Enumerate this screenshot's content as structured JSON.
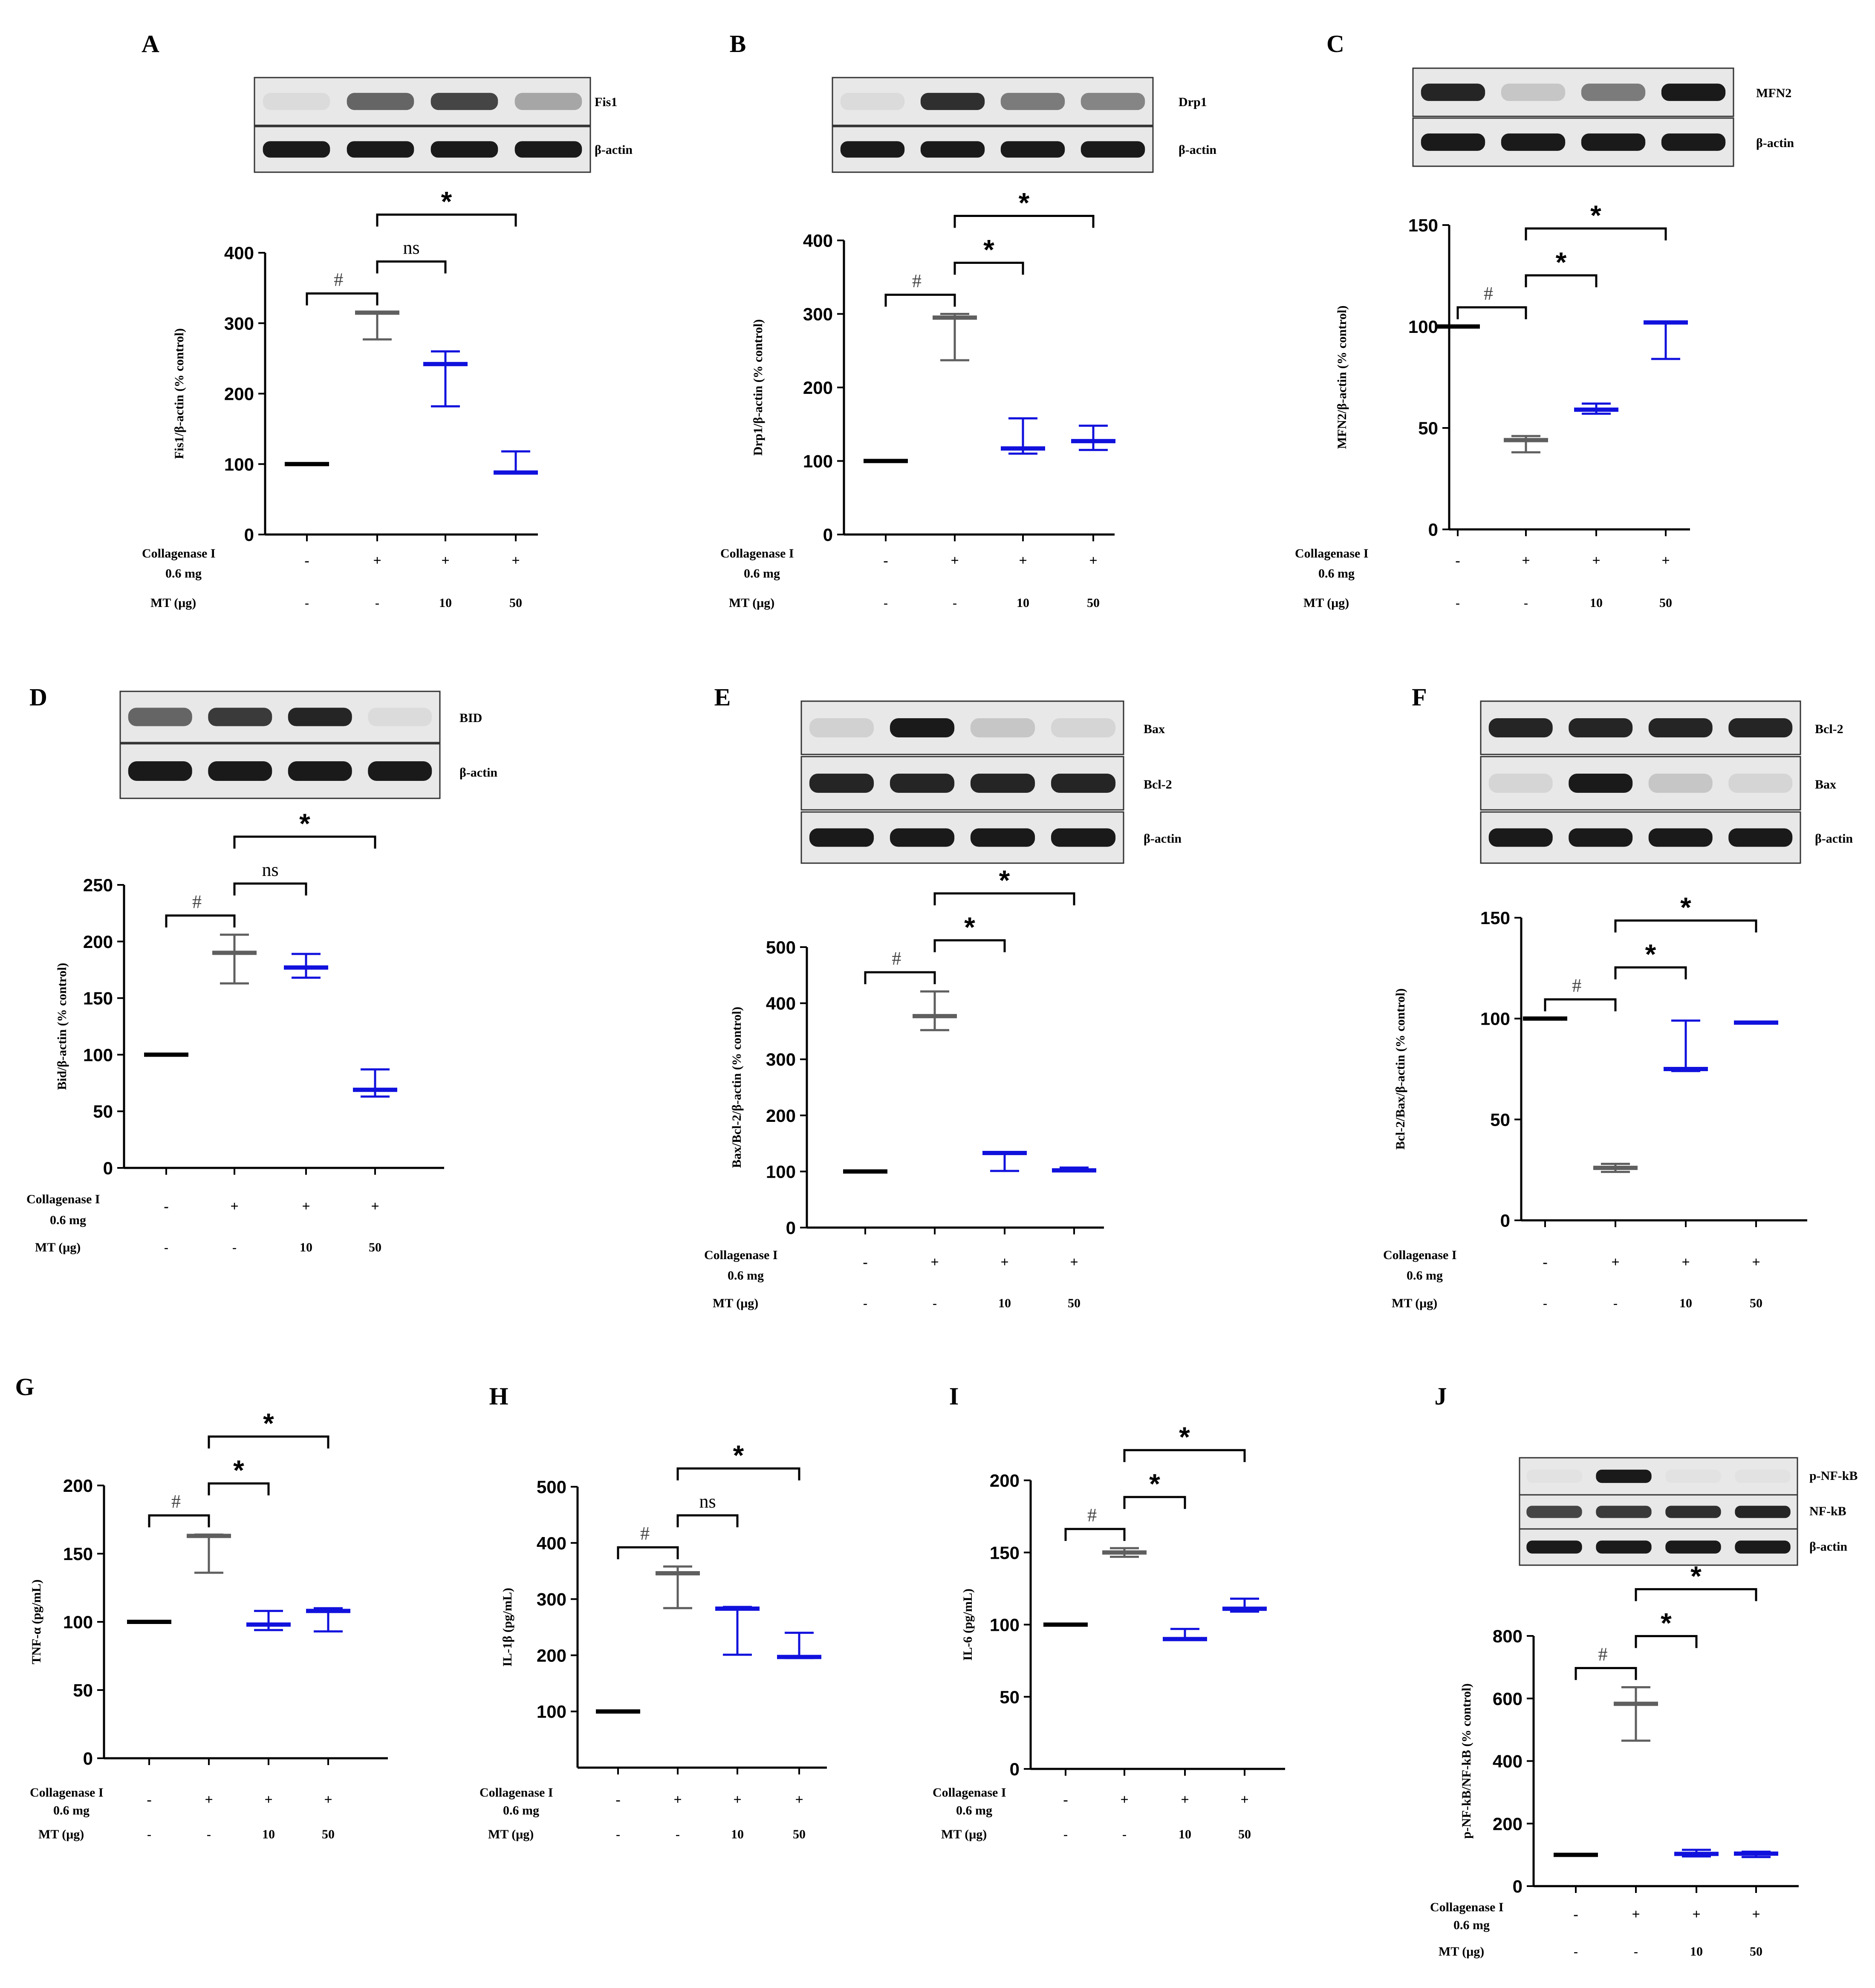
{
  "colors": {
    "control": "#000000",
    "model": "#5f5f5f",
    "treated": "#1111dd",
    "axis": "#000000"
  },
  "rows": {
    "collagenase_label": "Collagenase I",
    "collagenase_dose": "0.6 mg",
    "mt_label": "MT (μg)",
    "collagenase_vals": [
      "-",
      "+",
      "+",
      "+"
    ],
    "mt_vals": [
      "-",
      "-",
      "10",
      "50"
    ]
  },
  "chart_data": [
    {
      "panel": "A",
      "type": "bar",
      "ylabel": "Fis1/β-actin (% control)",
      "ylim": [
        0,
        400
      ],
      "ticks": [
        0,
        100,
        200,
        300,
        400
      ],
      "blot": {
        "bands": [
          "Fis1",
          "β-actin"
        ]
      },
      "groups": [
        {
          "mean": 100,
          "lo": 100,
          "hi": 100,
          "color": "control"
        },
        {
          "mean": 315,
          "lo": 277,
          "hi": 315,
          "color": "model"
        },
        {
          "mean": 242,
          "lo": 182,
          "hi": 260,
          "color": "treated"
        },
        {
          "mean": 88,
          "lo": 88,
          "hi": 118,
          "color": "treated"
        }
      ],
      "comparisons": [
        {
          "from": 0,
          "to": 1,
          "label": "#"
        },
        {
          "from": 1,
          "to": 2,
          "label": "ns"
        },
        {
          "from": 1,
          "to": 3,
          "label": "*"
        }
      ]
    },
    {
      "panel": "B",
      "type": "bar",
      "ylabel": "Drp1/β-actin (% control)",
      "ylim": [
        0,
        400
      ],
      "ticks": [
        0,
        100,
        200,
        300,
        400
      ],
      "blot": {
        "bands": [
          "Drp1",
          "β-actin"
        ]
      },
      "groups": [
        {
          "mean": 100,
          "lo": 100,
          "hi": 100,
          "color": "control"
        },
        {
          "mean": 295,
          "lo": 237,
          "hi": 300,
          "color": "model"
        },
        {
          "mean": 117,
          "lo": 110,
          "hi": 158,
          "color": "treated"
        },
        {
          "mean": 127,
          "lo": 115,
          "hi": 148,
          "color": "treated"
        }
      ],
      "comparisons": [
        {
          "from": 0,
          "to": 1,
          "label": "#"
        },
        {
          "from": 1,
          "to": 2,
          "label": "*"
        },
        {
          "from": 1,
          "to": 3,
          "label": "*"
        }
      ]
    },
    {
      "panel": "C",
      "type": "bar",
      "ylabel": "MFN2/β-actin (% control)",
      "ylim": [
        0,
        150
      ],
      "ticks": [
        0,
        50,
        100,
        150
      ],
      "blot": {
        "bands": [
          "MFN2",
          "β-actin"
        ]
      },
      "groups": [
        {
          "mean": 100,
          "lo": 100,
          "hi": 100,
          "color": "control"
        },
        {
          "mean": 44,
          "lo": 38,
          "hi": 46,
          "color": "model"
        },
        {
          "mean": 59,
          "lo": 57,
          "hi": 62,
          "color": "treated"
        },
        {
          "mean": 102,
          "lo": 84,
          "hi": 102,
          "color": "treated"
        }
      ],
      "comparisons": [
        {
          "from": 0,
          "to": 1,
          "label": "#"
        },
        {
          "from": 1,
          "to": 2,
          "label": "*"
        },
        {
          "from": 1,
          "to": 3,
          "label": "*"
        }
      ]
    },
    {
      "panel": "D",
      "type": "bar",
      "ylabel": "Bid/β-actin (% control)",
      "ylim": [
        0,
        250
      ],
      "ticks": [
        0,
        50,
        100,
        150,
        200,
        250
      ],
      "blot": {
        "bands": [
          "BID",
          "β-actin"
        ]
      },
      "groups": [
        {
          "mean": 100,
          "lo": 100,
          "hi": 100,
          "color": "control"
        },
        {
          "mean": 190,
          "lo": 163,
          "hi": 206,
          "color": "model"
        },
        {
          "mean": 177,
          "lo": 168,
          "hi": 189,
          "color": "treated"
        },
        {
          "mean": 69,
          "lo": 63,
          "hi": 87,
          "color": "treated"
        }
      ],
      "comparisons": [
        {
          "from": 0,
          "to": 1,
          "label": "#"
        },
        {
          "from": 1,
          "to": 2,
          "label": "ns"
        },
        {
          "from": 1,
          "to": 3,
          "label": "*"
        }
      ]
    },
    {
      "panel": "E",
      "type": "bar",
      "ylabel": "Bax/Bcl-2/β-actin (% control)",
      "ylim": [
        0,
        500
      ],
      "ticks": [
        0,
        100,
        200,
        300,
        400,
        500
      ],
      "blot": {
        "bands": [
          "Bax",
          "Bcl-2",
          "β-actin"
        ]
      },
      "groups": [
        {
          "mean": 100,
          "lo": 100,
          "hi": 100,
          "color": "control"
        },
        {
          "mean": 377,
          "lo": 352,
          "hi": 421,
          "color": "model"
        },
        {
          "mean": 133,
          "lo": 101,
          "hi": 133,
          "color": "treated"
        },
        {
          "mean": 102,
          "lo": 101,
          "hi": 107,
          "color": "treated"
        }
      ],
      "comparisons": [
        {
          "from": 0,
          "to": 1,
          "label": "#"
        },
        {
          "from": 1,
          "to": 2,
          "label": "*"
        },
        {
          "from": 1,
          "to": 3,
          "label": "*"
        }
      ]
    },
    {
      "panel": "F",
      "type": "bar",
      "ylabel": "Bcl-2/Bax/β-actin (% control)",
      "ylim": [
        0,
        150
      ],
      "ticks": [
        0,
        50,
        100,
        150
      ],
      "blot": {
        "bands": [
          "Bcl-2",
          "Bax",
          "β-actin"
        ]
      },
      "groups": [
        {
          "mean": 100,
          "lo": 100,
          "hi": 100,
          "color": "control"
        },
        {
          "mean": 26,
          "lo": 24,
          "hi": 28,
          "color": "model"
        },
        {
          "mean": 75,
          "lo": 74,
          "hi": 99,
          "color": "treated"
        },
        {
          "mean": 98,
          "lo": 98,
          "hi": 98,
          "color": "treated"
        }
      ],
      "comparisons": [
        {
          "from": 0,
          "to": 1,
          "label": "#"
        },
        {
          "from": 1,
          "to": 2,
          "label": "*"
        },
        {
          "from": 1,
          "to": 3,
          "label": "*"
        }
      ]
    },
    {
      "panel": "G",
      "type": "bar",
      "ylabel": "TNF-α (pg/mL)",
      "ylim": [
        0,
        200
      ],
      "ticks": [
        0,
        50,
        100,
        150,
        200
      ],
      "groups": [
        {
          "mean": 100,
          "lo": 100,
          "hi": 100,
          "color": "control"
        },
        {
          "mean": 163,
          "lo": 136,
          "hi": 164,
          "color": "model"
        },
        {
          "mean": 98,
          "lo": 94,
          "hi": 108,
          "color": "treated"
        },
        {
          "mean": 108,
          "lo": 93,
          "hi": 110,
          "color": "treated"
        }
      ],
      "comparisons": [
        {
          "from": 0,
          "to": 1,
          "label": "#"
        },
        {
          "from": 1,
          "to": 2,
          "label": "*"
        },
        {
          "from": 1,
          "to": 3,
          "label": "*"
        }
      ]
    },
    {
      "panel": "H",
      "type": "bar",
      "ylabel": "IL-1β (pg/mL)",
      "ylim": [
        0,
        500
      ],
      "ticks": [
        100,
        200,
        300,
        400,
        500
      ],
      "groups": [
        {
          "mean": 100,
          "lo": 100,
          "hi": 100,
          "color": "control"
        },
        {
          "mean": 346,
          "lo": 284,
          "hi": 358,
          "color": "model"
        },
        {
          "mean": 283,
          "lo": 201,
          "hi": 286,
          "color": "treated"
        },
        {
          "mean": 197,
          "lo": 195,
          "hi": 240,
          "color": "treated"
        }
      ],
      "comparisons": [
        {
          "from": 0,
          "to": 1,
          "label": "#"
        },
        {
          "from": 1,
          "to": 2,
          "label": "ns"
        },
        {
          "from": 1,
          "to": 3,
          "label": "*"
        }
      ]
    },
    {
      "panel": "I",
      "type": "bar",
      "ylabel": "IL-6 (pg/mL)",
      "ylim": [
        0,
        200
      ],
      "ticks": [
        0,
        50,
        100,
        150,
        200
      ],
      "groups": [
        {
          "mean": 100,
          "lo": 100,
          "hi": 100,
          "color": "control"
        },
        {
          "mean": 150,
          "lo": 147,
          "hi": 153,
          "color": "model"
        },
        {
          "mean": 90,
          "lo": 90,
          "hi": 97,
          "color": "treated"
        },
        {
          "mean": 111,
          "lo": 109,
          "hi": 118,
          "color": "treated"
        }
      ],
      "comparisons": [
        {
          "from": 0,
          "to": 1,
          "label": "#"
        },
        {
          "from": 1,
          "to": 2,
          "label": "*"
        },
        {
          "from": 1,
          "to": 3,
          "label": "*"
        }
      ]
    },
    {
      "panel": "J",
      "type": "bar",
      "ylabel": "p-NF-kB/NF-kB (% control)",
      "ylim": [
        0,
        800
      ],
      "ticks": [
        0,
        200,
        400,
        600,
        800
      ],
      "blot": {
        "bands": [
          "p-NF-kB",
          "NF-kB",
          "β-actin"
        ]
      },
      "groups": [
        {
          "mean": 100,
          "lo": 100,
          "hi": 100,
          "color": "control"
        },
        {
          "mean": 583,
          "lo": 465,
          "hi": 636,
          "color": "model"
        },
        {
          "mean": 103,
          "lo": 95,
          "hi": 116,
          "color": "treated"
        },
        {
          "mean": 104,
          "lo": 93,
          "hi": 110,
          "color": "treated"
        }
      ],
      "comparisons": [
        {
          "from": 0,
          "to": 1,
          "label": "#"
        },
        {
          "from": 1,
          "to": 2,
          "label": "*"
        },
        {
          "from": 1,
          "to": 3,
          "label": "*"
        }
      ]
    }
  ]
}
